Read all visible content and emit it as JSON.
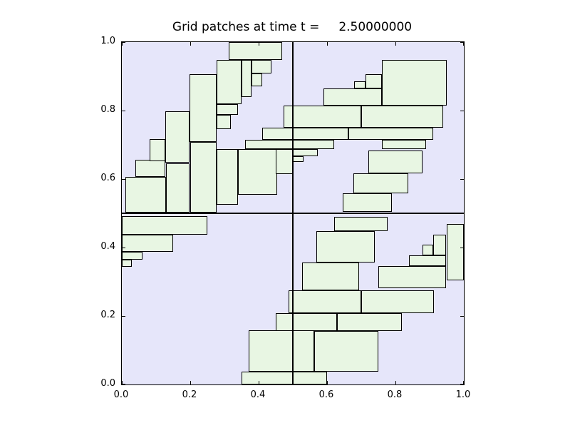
{
  "title": "Grid patches at time t =     2.50000000",
  "colors": {
    "figure_bg": "#ffffff",
    "plot_bg": "#E6E6FA",
    "patch_fill": "#E8F6E3",
    "patch_edge": "#000000",
    "spine": "#000000"
  },
  "axes": {
    "xlim": [
      0.0,
      1.0
    ],
    "ylim": [
      0.0,
      1.0
    ],
    "x_ticks": [
      {
        "label": "0.0",
        "value": 0.0
      },
      {
        "label": "0.2",
        "value": 0.2
      },
      {
        "label": "0.4",
        "value": 0.4
      },
      {
        "label": "0.6",
        "value": 0.6
      },
      {
        "label": "0.8",
        "value": 0.8
      },
      {
        "label": "1.0",
        "value": 1.0
      }
    ],
    "y_ticks": [
      {
        "label": "0.0",
        "value": 0.0
      },
      {
        "label": "0.2",
        "value": 0.2
      },
      {
        "label": "0.4",
        "value": 0.4
      },
      {
        "label": "0.6",
        "value": 0.6
      },
      {
        "label": "0.8",
        "value": 0.8
      },
      {
        "label": "1.0",
        "value": 1.0
      }
    ]
  },
  "chart_data": {
    "type": "amr-grid-patches",
    "title": "Grid patches at time t =     2.50000000",
    "xlabel": "",
    "ylabel": "",
    "xlim": [
      0.0,
      1.0
    ],
    "ylim": [
      0.0,
      1.0
    ],
    "grid": false,
    "level1_x_boundaries": [
      0.5
    ],
    "level1_y_boundaries": [
      0.5
    ],
    "patches_format": [
      "x0",
      "y0",
      "x1",
      "y1"
    ],
    "patches": [
      [
        0.01,
        0.502,
        0.13,
        0.606
      ],
      [
        0.04,
        0.606,
        0.128,
        0.656
      ],
      [
        0.082,
        0.653,
        0.128,
        0.716
      ],
      [
        0.13,
        0.502,
        0.198,
        0.645
      ],
      [
        0.128,
        0.648,
        0.198,
        0.798
      ],
      [
        0.2,
        0.502,
        0.278,
        0.708
      ],
      [
        0.198,
        0.708,
        0.278,
        0.906
      ],
      [
        0.278,
        0.819,
        0.351,
        0.947
      ],
      [
        0.278,
        0.787,
        0.34,
        0.819
      ],
      [
        0.278,
        0.746,
        0.319,
        0.787
      ],
      [
        0.3125,
        0.947,
        0.469,
        1.0
      ],
      [
        0.351,
        0.84,
        0.379,
        0.947
      ],
      [
        0.379,
        0.909,
        0.4375,
        0.947
      ],
      [
        0.379,
        0.871,
        0.41,
        0.909
      ],
      [
        0.278,
        0.524,
        0.34,
        0.687
      ],
      [
        0.34,
        0.555,
        0.455,
        0.687
      ],
      [
        0.451,
        0.614,
        0.5,
        0.687
      ],
      [
        0.361,
        0.687,
        0.621,
        0.715
      ],
      [
        0.41,
        0.715,
        0.663,
        0.75
      ],
      [
        0.663,
        0.715,
        0.91,
        0.75
      ],
      [
        0.472,
        0.75,
        0.7,
        0.815
      ],
      [
        0.7,
        0.75,
        0.94,
        0.815
      ],
      [
        0.5,
        0.666,
        0.573,
        0.687
      ],
      [
        0.5,
        0.649,
        0.531,
        0.666
      ],
      [
        0.59,
        0.815,
        0.76,
        0.864
      ],
      [
        0.68,
        0.864,
        0.712,
        0.886
      ],
      [
        0.712,
        0.864,
        0.76,
        0.907
      ],
      [
        0.76,
        0.815,
        0.95,
        0.947
      ],
      [
        0.76,
        0.687,
        0.89,
        0.715
      ],
      [
        0.72,
        0.617,
        0.88,
        0.683
      ],
      [
        0.677,
        0.558,
        0.837,
        0.617
      ],
      [
        0.645,
        0.505,
        0.79,
        0.558
      ],
      [
        0.621,
        0.447,
        0.778,
        0.489
      ],
      [
        0.569,
        0.357,
        0.74,
        0.447
      ],
      [
        0.528,
        0.274,
        0.694,
        0.357
      ],
      [
        0.75,
        0.281,
        0.948,
        0.346
      ],
      [
        0.84,
        0.346,
        0.948,
        0.378
      ],
      [
        0.879,
        0.378,
        0.91,
        0.409
      ],
      [
        0.91,
        0.378,
        0.948,
        0.437
      ],
      [
        0.95,
        0.305,
        1.0,
        0.468
      ],
      [
        0.487,
        0.208,
        0.7,
        0.274
      ],
      [
        0.7,
        0.208,
        0.913,
        0.274
      ],
      [
        0.451,
        0.156,
        0.629,
        0.208
      ],
      [
        0.629,
        0.156,
        0.819,
        0.208
      ],
      [
        0.5625,
        0.0375,
        0.75,
        0.156
      ],
      [
        0.371,
        0.0375,
        0.5625,
        0.159
      ],
      [
        0.35,
        0.0,
        0.5,
        0.0375
      ],
      [
        0.5,
        0.0,
        0.601,
        0.0375
      ],
      [
        0.0,
        0.437,
        0.25,
        0.492
      ],
      [
        0.0,
        0.388,
        0.149,
        0.437
      ],
      [
        0.0,
        0.364,
        0.061,
        0.388
      ],
      [
        0.0,
        0.343,
        0.029,
        0.364
      ]
    ]
  }
}
